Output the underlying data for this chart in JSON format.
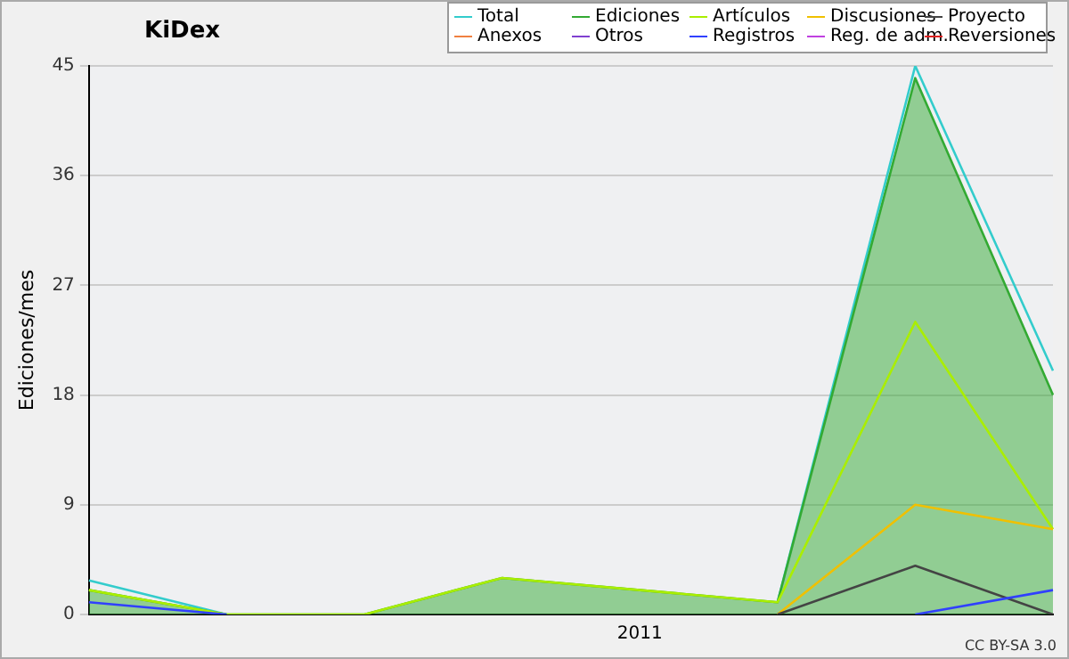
{
  "chart_data": {
    "type": "line",
    "title": "KiDex",
    "ylabel": "Ediciones/mes",
    "categories": [
      null,
      null,
      null,
      null,
      null,
      null,
      null,
      null
    ],
    "ylim": [
      0,
      45
    ],
    "yticks": [
      0,
      9,
      18,
      27,
      36,
      45
    ],
    "grid": "y",
    "legend": "top right",
    "marker": "none",
    "line_style": "solid",
    "annotations": [
      "2011",
      "CC BY-SA 3.0"
    ],
    "series": [
      {
        "name": "Total",
        "color": "#33cccc",
        "values": [
          2.8,
          0,
          null,
          null,
          null,
          1,
          45,
          20
        ]
      },
      {
        "name": "Ediciones",
        "type": "area",
        "color": "#33aa33",
        "values": [
          2,
          0,
          0,
          3,
          2,
          1,
          44,
          18
        ]
      },
      {
        "name": "Artículos",
        "color": "#aaee00",
        "values": [
          2,
          0,
          0,
          3,
          2,
          1,
          24,
          7
        ]
      },
      {
        "name": "Discusiones",
        "color": "#f0c000",
        "values": [
          null,
          null,
          null,
          null,
          null,
          0,
          9,
          7
        ]
      },
      {
        "name": "Proyecto",
        "color": "#444444",
        "values": [
          null,
          null,
          null,
          null,
          null,
          0,
          4,
          0
        ]
      },
      {
        "name": "Anexos",
        "color": "#f08040",
        "values": [
          null,
          null,
          null,
          null,
          null,
          null,
          null,
          null
        ]
      },
      {
        "name": "Otros",
        "color": "#8040d0",
        "values": [
          null,
          null,
          null,
          null,
          null,
          null,
          null,
          null
        ]
      },
      {
        "name": "Registros",
        "color": "#3040ff",
        "values": [
          1,
          0,
          null,
          null,
          null,
          null,
          0,
          2
        ]
      },
      {
        "name": "Reg. de adm.",
        "color": "#c040e0",
        "values": [
          null,
          null,
          null,
          null,
          null,
          null,
          null,
          null
        ]
      },
      {
        "name": "Reversiones",
        "color": "#e02020",
        "values": [
          null,
          null,
          null,
          null,
          null,
          null,
          null,
          null
        ]
      }
    ]
  }
}
